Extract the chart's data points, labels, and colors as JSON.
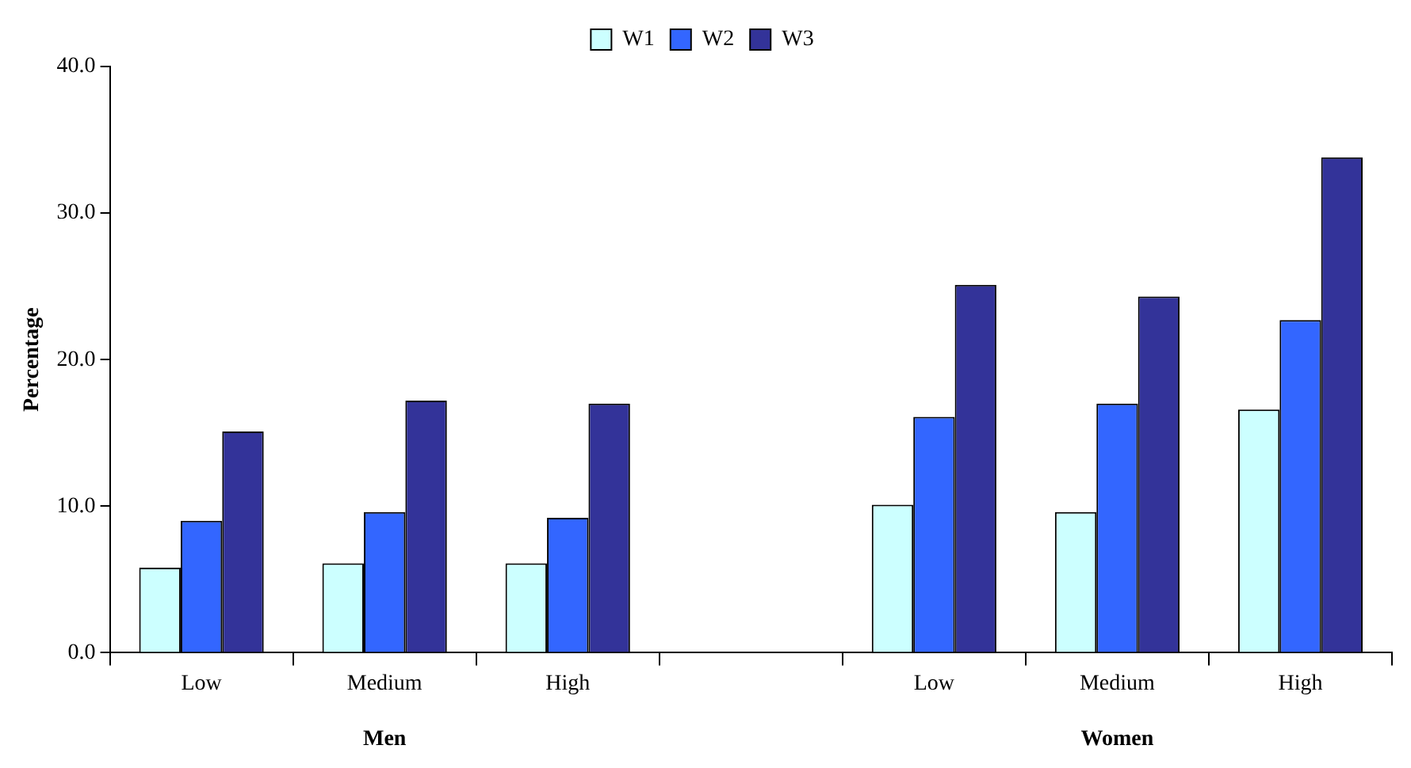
{
  "chart_data": {
    "type": "bar",
    "categories": [
      "Low",
      "Medium",
      "High",
      null,
      "Low",
      "Medium",
      "High"
    ],
    "series": [
      {
        "name": "W1",
        "color": "#ccffff",
        "values": [
          5.8,
          6.1,
          6.1,
          null,
          10.1,
          9.6,
          16.6
        ]
      },
      {
        "name": "W2",
        "color": "#3366ff",
        "values": [
          9.0,
          9.6,
          9.2,
          null,
          16.1,
          17.0,
          22.7
        ]
      },
      {
        "name": "W3",
        "color": "#333399",
        "values": [
          15.1,
          17.2,
          17.0,
          null,
          25.1,
          24.3,
          33.8
        ]
      }
    ],
    "ylabel": "Percentage",
    "ylim": [
      0,
      40
    ],
    "yticks": [
      {
        "value": 0,
        "label": "0.0"
      },
      {
        "value": 10,
        "label": "10.0"
      },
      {
        "value": 20,
        "label": "20.0"
      },
      {
        "value": 30,
        "label": "30.0"
      },
      {
        "value": 40,
        "label": "40.0"
      }
    ],
    "annotations": [
      "Men",
      "Women"
    ],
    "grid": false,
    "legend": "top"
  }
}
